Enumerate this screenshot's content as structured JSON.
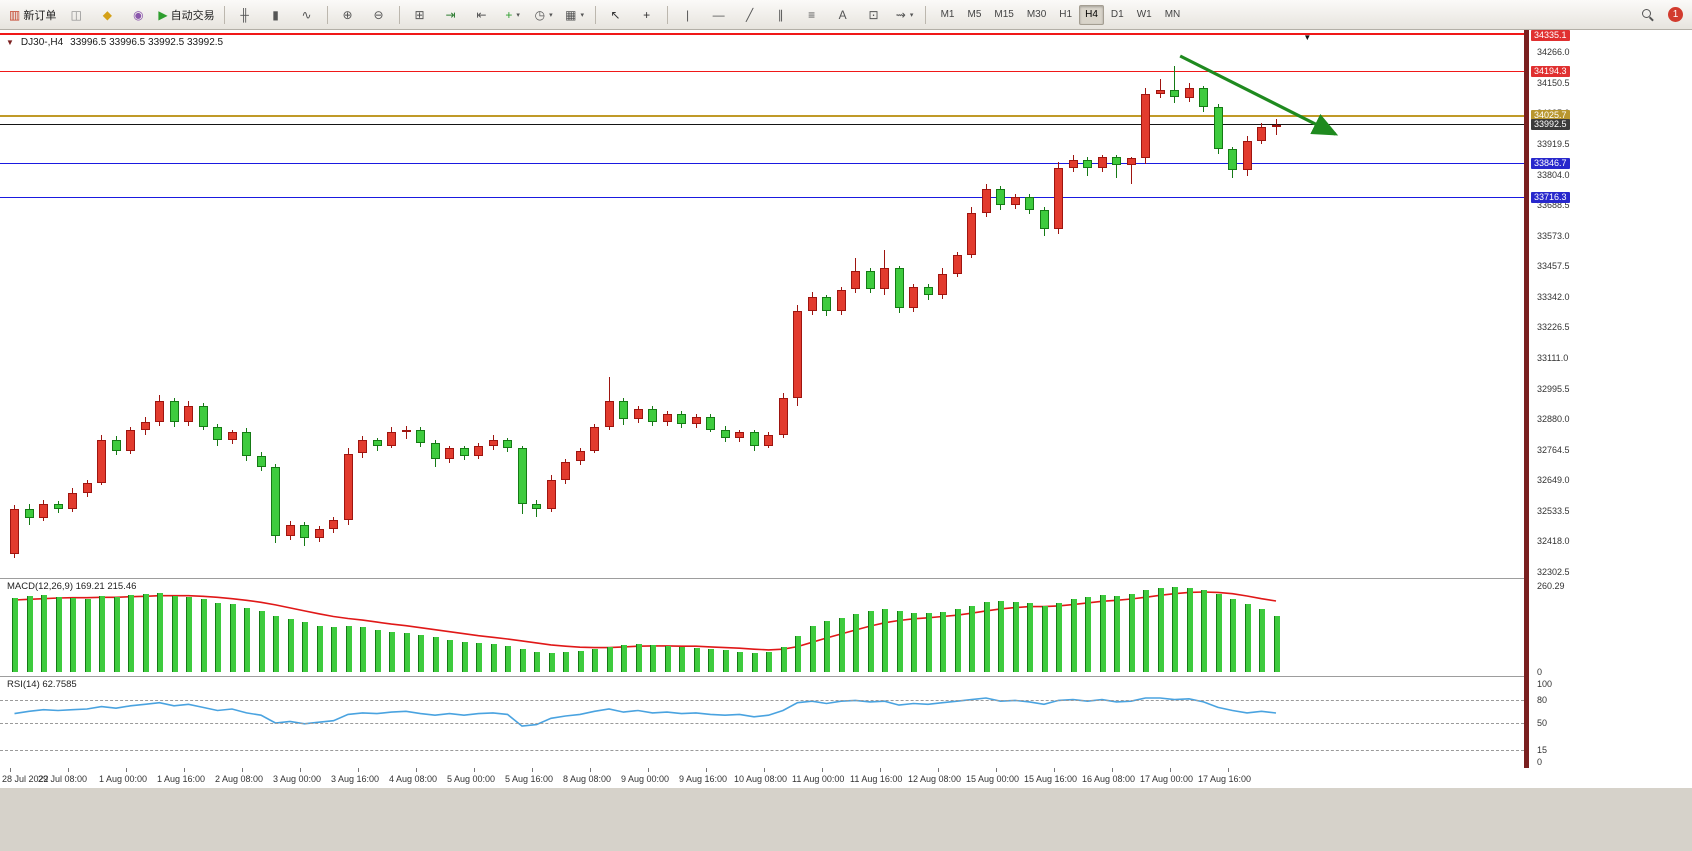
{
  "toolbar": {
    "notification_count": "1",
    "items": [
      {
        "name": "new-order-button",
        "glyph": "▥",
        "glyph_color": "#c23b22",
        "label": "新订单"
      },
      {
        "name": "chart-window-button",
        "glyph": "◫",
        "glyph_color": "#8a8a8a"
      },
      {
        "name": "quotes-button",
        "glyph": "◆",
        "glyph_color": "#d4a017"
      },
      {
        "name": "support-button",
        "glyph": "◉",
        "glyph_color": "#8a56ac"
      },
      {
        "name": "auto-trading-button",
        "glyph": "▶",
        "glyph_color": "#2e9e2e",
        "label": "自动交易"
      },
      {
        "sep": true
      },
      {
        "name": "bar-chart-button",
        "glyph": "╫",
        "glyph_color": "#555555"
      },
      {
        "name": "candlestick-chart-button",
        "glyph": "▮",
        "glyph_color": "#555555"
      },
      {
        "name": "line-chart-button",
        "glyph": "∿",
        "glyph_color": "#555555"
      },
      {
        "sep": true
      },
      {
        "name": "zoom-in-button",
        "glyph": "⊕",
        "glyph_color": "#555555"
      },
      {
        "name": "zoom-out-button",
        "glyph": "⊖",
        "glyph_color": "#555555"
      },
      {
        "sep": true
      },
      {
        "name": "tile-windows-button",
        "glyph": "⊞",
        "glyph_color": "#555555"
      },
      {
        "name": "auto-scroll-button",
        "glyph": "⇥",
        "glyph_color": "#2e7d32"
      },
      {
        "name": "chart-shift-button",
        "glyph": "⇤",
        "glyph_color": "#555555"
      },
      {
        "name": "indicators-button",
        "glyph": "+",
        "glyph_color": "#2e9e2e",
        "caret": true
      },
      {
        "name": "periods-button",
        "glyph": "◷",
        "glyph_color": "#555555",
        "caret": true
      },
      {
        "name": "templates-button",
        "glyph": "▦",
        "glyph_color": "#555555",
        "caret": true
      },
      {
        "sep": true
      },
      {
        "name": "cursor-button",
        "glyph": "↖",
        "glyph_color": "#333333"
      },
      {
        "name": "crosshair-button",
        "glyph": "+",
        "glyph_color": "#333333"
      },
      {
        "sep": true
      },
      {
        "name": "vertical-line-button",
        "glyph": "|",
        "glyph_color": "#555555"
      },
      {
        "name": "horizontal-line-button",
        "glyph": "—",
        "glyph_color": "#555555"
      },
      {
        "name": "trendline-button",
        "glyph": "╱",
        "glyph_color": "#555555"
      },
      {
        "name": "channel-button",
        "glyph": "∥",
        "glyph_color": "#555555"
      },
      {
        "name": "fibonacci-button",
        "glyph": "≡",
        "glyph_color": "#555555"
      },
      {
        "name": "text-button",
        "glyph": "A",
        "glyph_color": "#555555"
      },
      {
        "name": "label-button",
        "glyph": "⊡",
        "glyph_color": "#555555"
      },
      {
        "name": "arrows-button",
        "glyph": "⇝",
        "glyph_color": "#555555",
        "caret": true
      },
      {
        "sep": true
      }
    ],
    "timeframes": {
      "labels": [
        "M1",
        "M5",
        "M15",
        "M30",
        "H1",
        "H4",
        "D1",
        "W1",
        "MN"
      ],
      "active": "H4"
    }
  },
  "chart_header": {
    "marker": "▼",
    "symbol": "DJ30-,H4",
    "ohlc": "33996.5 33996.5 33992.5 33992.5"
  },
  "colors": {
    "bull": "#e23b2e",
    "bull_border": "#9e1510",
    "bear": "#3ecb3e",
    "bear_border": "#157a15",
    "macd_hist": "#3ecb3e",
    "macd_hist_border": "#157a15",
    "macd_signal": "#e01818",
    "rsi_line": "#4aa3e0",
    "axis_text": "#333333"
  },
  "chart_data": {
    "type": "candlestick",
    "symbol": "DJ30-",
    "timeframe": "H4",
    "ylim": [
      32302.5,
      34335.1
    ],
    "y_axis_ticks": [
      "34266.0",
      "34150.5",
      "34035.0",
      "33919.5",
      "33804.0",
      "33688.5",
      "33573.0",
      "33457.5",
      "33342.0",
      "33226.5",
      "33111.0",
      "32995.5",
      "32880.0",
      "32764.5",
      "32649.0",
      "32533.5",
      "32418.0",
      "32302.5"
    ],
    "x_labels": [
      "28 Jul 2022",
      "29 Jul 08:00",
      "1 Aug 00:00",
      "1 Aug 16:00",
      "2 Aug 08:00",
      "3 Aug 00:00",
      "3 Aug 16:00",
      "4 Aug 08:00",
      "5 Aug 00:00",
      "5 Aug 16:00",
      "8 Aug 08:00",
      "9 Aug 00:00",
      "9 Aug 16:00",
      "10 Aug 08:00",
      "11 Aug 00:00",
      "11 Aug 16:00",
      "12 Aug 08:00",
      "15 Aug 00:00",
      "15 Aug 16:00",
      "16 Aug 08:00",
      "17 Aug 00:00",
      "17 Aug 16:00"
    ],
    "x_label_every": 4,
    "levels": [
      {
        "price": 34335.1,
        "label": "34335.1",
        "color": "#f01818",
        "tag_bg": "#e03030",
        "width": 2
      },
      {
        "price": 34194.3,
        "label": "34194.3",
        "color": "#f01818",
        "tag_bg": "#e03030",
        "width": 1
      },
      {
        "price": 34025.7,
        "label": "34025.7",
        "color": "#c09a28",
        "tag_bg": "#b8962e",
        "width": 2
      },
      {
        "price": 33992.5,
        "label": "33992.5",
        "color": "#151515",
        "tag_bg": "#3c3c3c",
        "width": 1
      },
      {
        "price": 33846.7,
        "label": "33846.7",
        "color": "#1a1ae0",
        "tag_bg": "#2828cc",
        "width": 1
      },
      {
        "price": 33716.3,
        "label": "33716.3",
        "color": "#1a1ae0",
        "tag_bg": "#2828cc",
        "width": 1
      }
    ],
    "candles": [
      [
        32370,
        32555,
        32355,
        32540
      ],
      [
        32540,
        32560,
        32480,
        32505
      ],
      [
        32505,
        32575,
        32495,
        32560
      ],
      [
        32560,
        32570,
        32525,
        32540
      ],
      [
        32540,
        32620,
        32530,
        32600
      ],
      [
        32600,
        32650,
        32585,
        32640
      ],
      [
        32640,
        32820,
        32630,
        32800
      ],
      [
        32800,
        32815,
        32745,
        32760
      ],
      [
        32760,
        32850,
        32750,
        32840
      ],
      [
        32840,
        32890,
        32820,
        32870
      ],
      [
        32870,
        32970,
        32855,
        32950
      ],
      [
        32950,
        32960,
        32850,
        32870
      ],
      [
        32870,
        32950,
        32855,
        32930
      ],
      [
        32930,
        32940,
        32840,
        32850
      ],
      [
        32850,
        32860,
        32780,
        32800
      ],
      [
        32800,
        32840,
        32785,
        32830
      ],
      [
        32830,
        32845,
        32720,
        32740
      ],
      [
        32740,
        32755,
        32685,
        32700
      ],
      [
        32700,
        32710,
        32410,
        32440
      ],
      [
        32440,
        32495,
        32425,
        32480
      ],
      [
        32480,
        32490,
        32400,
        32430
      ],
      [
        32430,
        32475,
        32415,
        32465
      ],
      [
        32465,
        32510,
        32450,
        32500
      ],
      [
        32500,
        32770,
        32480,
        32750
      ],
      [
        32750,
        32815,
        32735,
        32800
      ],
      [
        32800,
        32810,
        32760,
        32780
      ],
      [
        32780,
        32850,
        32770,
        32830
      ],
      [
        32830,
        32855,
        32805,
        32840
      ],
      [
        32840,
        32850,
        32775,
        32790
      ],
      [
        32790,
        32800,
        32700,
        32730
      ],
      [
        32730,
        32780,
        32715,
        32770
      ],
      [
        32770,
        32780,
        32725,
        32740
      ],
      [
        32740,
        32790,
        32730,
        32780
      ],
      [
        32780,
        32820,
        32765,
        32800
      ],
      [
        32800,
        32810,
        32755,
        32770
      ],
      [
        32770,
        32780,
        32520,
        32560
      ],
      [
        32560,
        32575,
        32510,
        32540
      ],
      [
        32540,
        32670,
        32530,
        32650
      ],
      [
        32650,
        32730,
        32635,
        32720
      ],
      [
        32720,
        32770,
        32705,
        32760
      ],
      [
        32760,
        32860,
        32750,
        32850
      ],
      [
        32850,
        33040,
        32840,
        32950
      ],
      [
        32950,
        32960,
        32860,
        32880
      ],
      [
        32880,
        32930,
        32865,
        32920
      ],
      [
        32920,
        32930,
        32855,
        32870
      ],
      [
        32870,
        32910,
        32855,
        32900
      ],
      [
        32900,
        32910,
        32845,
        32860
      ],
      [
        32860,
        32900,
        32845,
        32890
      ],
      [
        32890,
        32900,
        32830,
        32840
      ],
      [
        32840,
        32855,
        32795,
        32810
      ],
      [
        32810,
        32840,
        32795,
        32830
      ],
      [
        32830,
        32840,
        32760,
        32780
      ],
      [
        32780,
        32830,
        32770,
        32820
      ],
      [
        32820,
        32980,
        32810,
        32960
      ],
      [
        32960,
        33310,
        32930,
        33290
      ],
      [
        33290,
        33360,
        33275,
        33340
      ],
      [
        33340,
        33350,
        33270,
        33290
      ],
      [
        33290,
        33380,
        33275,
        33370
      ],
      [
        33370,
        33490,
        33355,
        33440
      ],
      [
        33440,
        33450,
        33355,
        33370
      ],
      [
        33370,
        33520,
        33350,
        33450
      ],
      [
        33450,
        33460,
        33280,
        33300
      ],
      [
        33300,
        33390,
        33285,
        33380
      ],
      [
        33380,
        33390,
        33330,
        33350
      ],
      [
        33350,
        33450,
        33335,
        33430
      ],
      [
        33430,
        33510,
        33415,
        33500
      ],
      [
        33500,
        33680,
        33490,
        33660
      ],
      [
        33660,
        33770,
        33645,
        33750
      ],
      [
        33750,
        33760,
        33670,
        33690
      ],
      [
        33690,
        33730,
        33675,
        33720
      ],
      [
        33720,
        33730,
        33655,
        33670
      ],
      [
        33670,
        33680,
        33570,
        33600
      ],
      [
        33600,
        33850,
        33580,
        33830
      ],
      [
        33830,
        33880,
        33815,
        33860
      ],
      [
        33860,
        33870,
        33800,
        33830
      ],
      [
        33830,
        33880,
        33815,
        33870
      ],
      [
        33870,
        33880,
        33790,
        33840
      ],
      [
        33840,
        33870,
        33770,
        33865
      ],
      [
        33865,
        34130,
        33845,
        34110
      ],
      [
        34110,
        34165,
        34095,
        34125
      ],
      [
        34125,
        34215,
        34075,
        34095
      ],
      [
        34095,
        34150,
        34080,
        34130
      ],
      [
        34130,
        34140,
        34040,
        34060
      ],
      [
        34060,
        34070,
        33880,
        33900
      ],
      [
        33900,
        33910,
        33790,
        33820
      ],
      [
        33820,
        33950,
        33800,
        33930
      ],
      [
        33930,
        34000,
        33920,
        33985
      ],
      [
        33985,
        34015,
        33955,
        33992.5
      ]
    ],
    "indicators": [
      {
        "name": "MACD",
        "label": "MACD(12,26,9) 169.21 215.46",
        "max": 260.29,
        "axis_labels": [
          "260.29",
          "0"
        ],
        "histogram": [
          225,
          230,
          232,
          228,
          225,
          222,
          230,
          226,
          232,
          235,
          238,
          230,
          228,
          220,
          210,
          205,
          195,
          185,
          170,
          160,
          150,
          140,
          135,
          140,
          135,
          128,
          122,
          118,
          112,
          105,
          98,
          92,
          88,
          85,
          80,
          70,
          62,
          58,
          60,
          64,
          70,
          76,
          82,
          85,
          82,
          78,
          76,
          74,
          70,
          66,
          62,
          58,
          60,
          75,
          110,
          140,
          155,
          165,
          175,
          185,
          190,
          185,
          180,
          178,
          182,
          190,
          200,
          212,
          215,
          212,
          208,
          200,
          210,
          220,
          228,
          232,
          230,
          235,
          248,
          255,
          258,
          255,
          248,
          235,
          220,
          205,
          190,
          169
        ],
        "signal": [
          218,
          220,
          222,
          224,
          225,
          225,
          226,
          226,
          228,
          229,
          231,
          231,
          231,
          229,
          226,
          222,
          217,
          211,
          203,
          194,
          185,
          176,
          168,
          162,
          157,
          151,
          145,
          140,
          134,
          128,
          122,
          116,
          110,
          105,
          100,
          94,
          88,
          82,
          78,
          75,
          74,
          74,
          76,
          78,
          79,
          79,
          78,
          78,
          76,
          74,
          72,
          69,
          67,
          69,
          77,
          90,
          103,
          115,
          127,
          139,
          149,
          156,
          161,
          164,
          168,
          172,
          178,
          185,
          191,
          195,
          198,
          198,
          200,
          204,
          209,
          214,
          217,
          221,
          226,
          232,
          237,
          241,
          242,
          241,
          237,
          230,
          222,
          215
        ]
      },
      {
        "name": "RSI",
        "label": "RSI(14) 62.7585",
        "axis_labels": [
          "100",
          "80",
          "50",
          "15",
          "0"
        ],
        "levels": [
          80,
          50,
          15
        ],
        "values": [
          62,
          65,
          67,
          66,
          67,
          68,
          71,
          69,
          72,
          74,
          76,
          72,
          74,
          70,
          66,
          68,
          63,
          60,
          50,
          52,
          49,
          51,
          53,
          61,
          63,
          62,
          64,
          65,
          62,
          60,
          62,
          60,
          62,
          63,
          61,
          46,
          48,
          56,
          59,
          61,
          65,
          68,
          64,
          66,
          63,
          64,
          62,
          63,
          61,
          60,
          61,
          58,
          60,
          66,
          76,
          78,
          75,
          78,
          79,
          77,
          78,
          73,
          75,
          74,
          76,
          78,
          80,
          82,
          78,
          79,
          77,
          74,
          79,
          80,
          78,
          80,
          77,
          78,
          82,
          82,
          80,
          81,
          77,
          70,
          66,
          63,
          65,
          62.76
        ]
      }
    ],
    "annotation": {
      "type": "arrow",
      "color": "#1f8a1f",
      "from_index": 80.7,
      "from_price": 34252,
      "to_index": 91.4,
      "to_price": 33957
    },
    "annotation_marker": {
      "glyph": "▼",
      "index": 89.2,
      "price": 34322
    }
  }
}
